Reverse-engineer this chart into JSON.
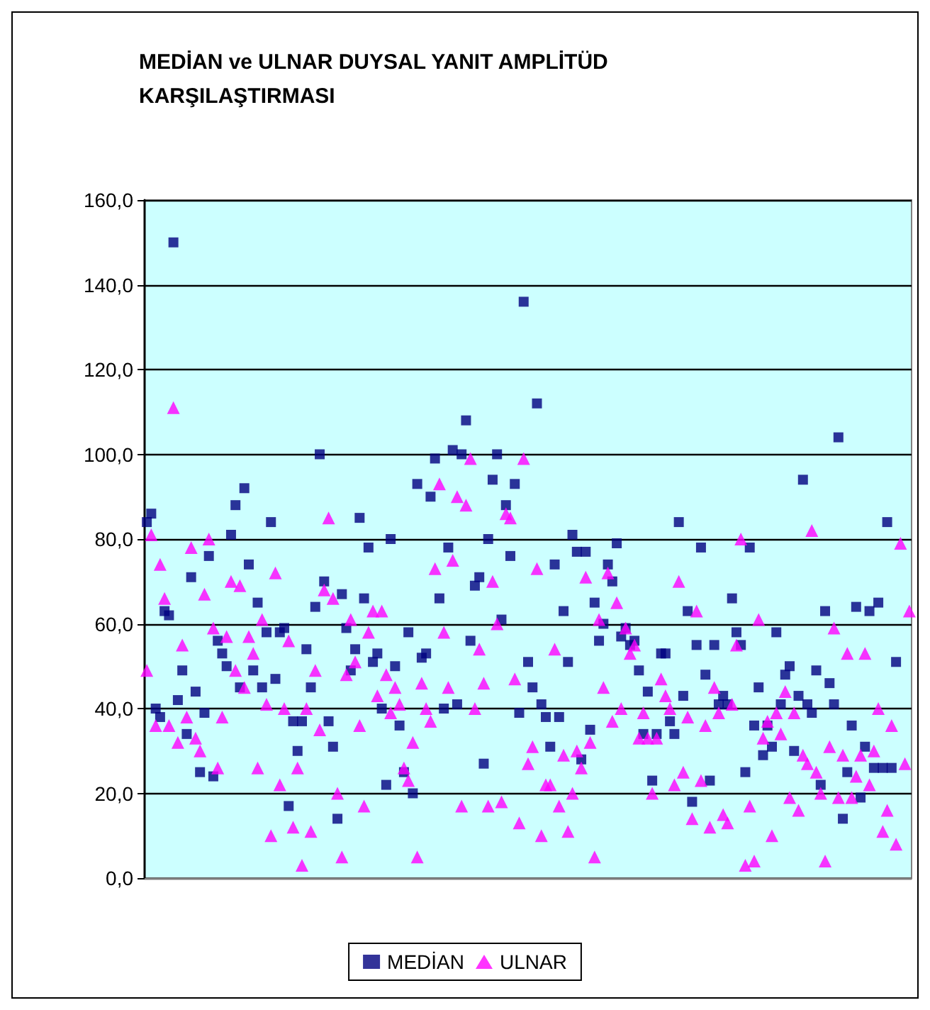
{
  "chart_data": {
    "type": "scatter",
    "title": "MEDİAN ve ULNAR DUYSAL YANIT AMPLİTÜD KARŞILAŞTIRMASI",
    "categories": [
      null,
      null,
      null,
      null,
      null,
      null,
      null,
      null,
      null,
      null,
      null,
      null,
      null,
      null,
      null,
      null,
      null,
      null,
      null,
      null,
      null,
      null,
      null,
      null,
      null,
      null,
      null,
      null,
      null,
      null,
      null,
      null,
      null,
      null,
      null,
      null,
      null,
      null,
      null,
      null,
      null,
      null,
      null,
      null,
      null,
      null,
      null,
      null,
      null,
      null,
      null,
      null,
      null,
      null,
      null,
      null,
      null,
      null,
      null,
      null,
      null,
      null,
      null,
      null,
      null,
      null,
      null,
      null,
      null,
      null,
      null,
      null,
      null,
      null,
      null,
      null,
      null,
      null,
      null,
      null,
      null,
      null,
      null,
      null,
      null,
      null,
      null,
      null,
      null,
      null,
      null,
      null,
      null,
      null,
      null,
      null,
      null,
      null,
      null,
      null,
      null,
      null,
      null,
      null,
      null,
      null,
      null,
      null,
      null,
      null,
      null,
      null,
      null,
      null,
      null,
      null,
      null,
      null,
      null,
      null,
      null,
      null,
      null,
      null,
      null,
      null,
      null,
      null,
      null,
      null,
      null,
      null,
      null,
      null,
      null,
      null,
      null,
      null,
      null,
      null,
      null,
      null,
      null,
      null,
      null,
      null,
      null,
      null,
      null,
      null,
      null,
      null,
      null,
      null,
      null,
      null,
      null,
      null,
      null,
      null,
      null,
      null,
      null,
      null,
      null,
      null,
      null,
      null,
      null,
      null,
      null,
      null,
      null
    ],
    "series": [
      {
        "name": "MEDİAN",
        "color": "#000080",
        "marker": "square",
        "values": [
          84,
          86,
          40,
          38,
          63,
          62,
          150,
          42,
          49,
          34,
          71,
          44,
          25,
          39,
          76,
          24,
          56,
          53,
          50,
          81,
          88,
          45,
          92,
          74,
          49,
          65,
          45,
          58,
          84,
          47,
          58,
          59,
          17,
          37,
          30,
          37,
          54,
          45,
          64,
          100,
          70,
          37,
          31,
          14,
          67,
          59,
          49,
          54,
          85,
          66,
          78,
          51,
          53,
          40,
          22,
          80,
          50,
          36,
          25,
          58,
          20,
          93,
          52,
          53,
          90,
          99,
          66,
          40,
          78,
          101,
          41,
          100,
          108,
          56,
          69,
          71,
          27,
          80,
          94,
          100,
          61,
          88,
          76,
          93,
          39,
          136,
          51,
          45,
          112,
          41,
          38,
          31,
          74,
          38,
          63,
          51,
          81,
          77,
          28,
          77,
          35,
          65,
          56,
          60,
          74,
          70,
          79,
          57,
          59,
          55,
          56,
          49,
          34,
          44,
          23,
          34,
          53,
          53,
          37,
          34,
          84,
          43,
          63,
          18,
          55,
          78,
          48,
          23,
          55,
          41,
          43,
          41,
          66,
          58,
          55,
          25,
          78,
          36,
          45,
          29,
          36,
          31,
          58,
          41,
          48,
          50,
          30,
          43,
          94,
          41,
          39,
          49,
          22,
          63,
          46,
          41,
          104,
          14,
          25,
          36,
          64,
          19,
          31,
          63,
          26,
          65,
          26,
          84,
          26,
          51,
          null,
          null,
          null
        ]
      },
      {
        "name": "ULNAR",
        "color": "#ff00ff",
        "marker": "triangle",
        "values": [
          49,
          81,
          36,
          74,
          66,
          36,
          111,
          32,
          55,
          38,
          78,
          33,
          30,
          67,
          80,
          59,
          26,
          38,
          57,
          70,
          49,
          69,
          45,
          57,
          53,
          26,
          61,
          41,
          10,
          72,
          22,
          40,
          56,
          12,
          26,
          3,
          40,
          11,
          49,
          35,
          68,
          85,
          66,
          20,
          5,
          48,
          61,
          51,
          36,
          17,
          58,
          63,
          43,
          63,
          48,
          39,
          45,
          41,
          26,
          23,
          32,
          5,
          46,
          40,
          37,
          73,
          93,
          58,
          45,
          75,
          90,
          17,
          88,
          99,
          40,
          54,
          46,
          17,
          70,
          60,
          18,
          86,
          85,
          47,
          13,
          99,
          27,
          31,
          73,
          10,
          22,
          22,
          54,
          17,
          29,
          11,
          20,
          30,
          26,
          71,
          32,
          5,
          61,
          45,
          72,
          37,
          65,
          40,
          59,
          53,
          55,
          33,
          39,
          33,
          20,
          33,
          47,
          43,
          40,
          22,
          70,
          25,
          38,
          14,
          63,
          23,
          36,
          12,
          45,
          39,
          15,
          13,
          41,
          55,
          80,
          3,
          17,
          4,
          61,
          33,
          37,
          10,
          39,
          34,
          44,
          19,
          39,
          16,
          29,
          27,
          82,
          25,
          20,
          4,
          31,
          59,
          19,
          29,
          53,
          19,
          24,
          29,
          53,
          22,
          30,
          40,
          11,
          16,
          36,
          8,
          79,
          27,
          63
        ]
      }
    ],
    "ylim": [
      0,
      160
    ],
    "yticks": [
      {
        "value": 0,
        "label": "0,0"
      },
      {
        "value": 20,
        "label": "20,0"
      },
      {
        "value": 40,
        "label": "40,0"
      },
      {
        "value": 60,
        "label": "60,0"
      },
      {
        "value": 80,
        "label": "80,0"
      },
      {
        "value": 100,
        "label": "100,0"
      },
      {
        "value": 120,
        "label": "120,0"
      },
      {
        "value": 140,
        "label": "140,0"
      },
      {
        "value": 160,
        "label": "160,0"
      }
    ],
    "grid": "y",
    "legend": "bottom"
  }
}
